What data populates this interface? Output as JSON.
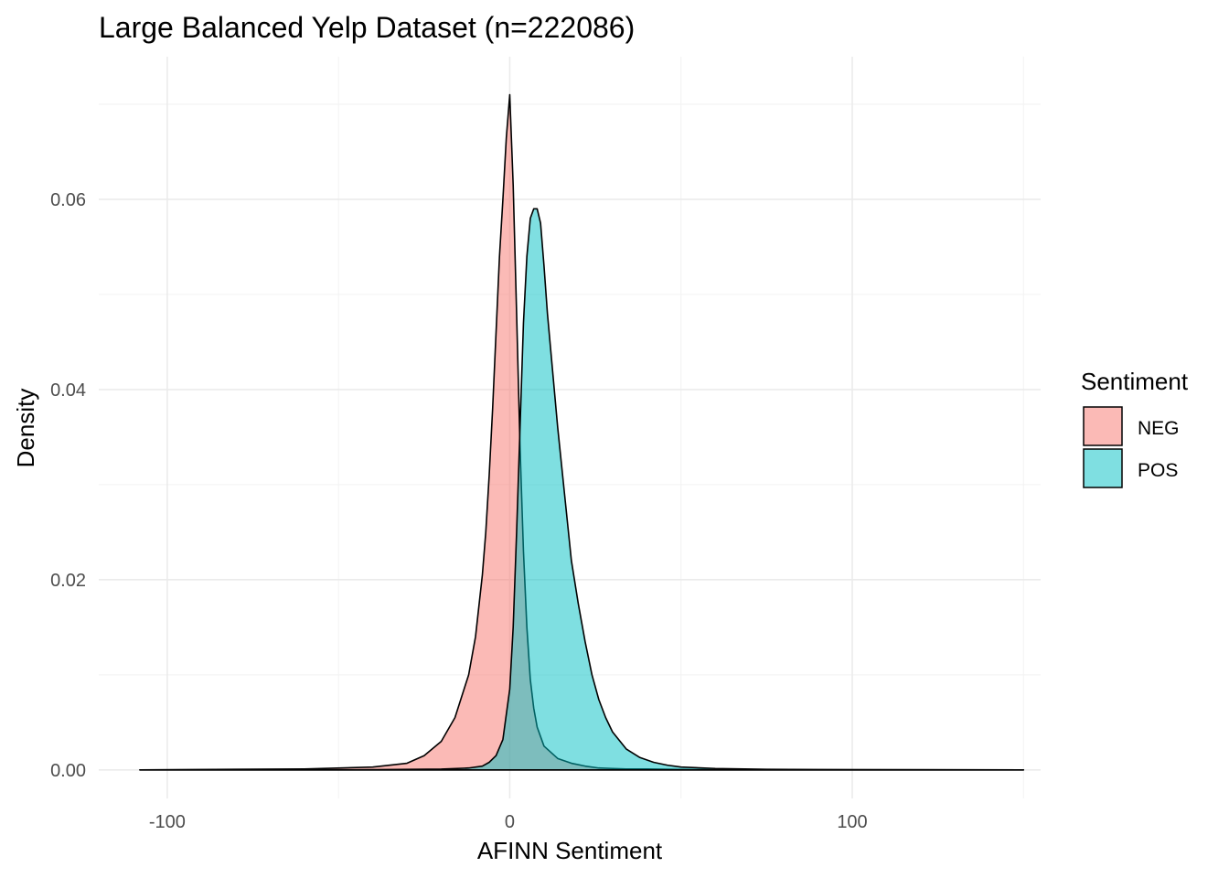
{
  "chart_data": {
    "type": "area",
    "title": "Large Balanced Yelp Dataset (n=222086)",
    "xlabel": "AFINN Sentiment",
    "ylabel": "Density",
    "xlim": [
      -120,
      155
    ],
    "ylim": [
      -0.003,
      0.075
    ],
    "grid": true,
    "x_ticks": [
      -100,
      0,
      100
    ],
    "x_tick_labels": [
      "-100",
      "0",
      "100"
    ],
    "y_ticks": [
      0,
      0.02,
      0.04,
      0.06
    ],
    "y_tick_labels": [
      "0.00",
      "0.02",
      "0.04",
      "0.06"
    ],
    "legend": {
      "title": "Sentiment",
      "position": "right"
    },
    "series": [
      {
        "name": "NEG",
        "color": "#F8766D",
        "x": [
          -108,
          -60,
          -40,
          -30,
          -25,
          -20,
          -16,
          -12,
          -10,
          -8,
          -7,
          -6,
          -5,
          -4,
          -3,
          -2,
          -1,
          0,
          1,
          2,
          3,
          4,
          5,
          6,
          7,
          8,
          10,
          14,
          18,
          22,
          26,
          30,
          34,
          40,
          50,
          60,
          80,
          110,
          150
        ],
        "values": [
          0,
          0.0001,
          0.0003,
          0.0007,
          0.0015,
          0.003,
          0.0055,
          0.01,
          0.014,
          0.0205,
          0.025,
          0.031,
          0.038,
          0.046,
          0.054,
          0.06,
          0.0665,
          0.071,
          0.0615,
          0.048,
          0.034,
          0.023,
          0.015,
          0.0095,
          0.0065,
          0.0045,
          0.0025,
          0.0012,
          0.0007,
          0.0004,
          0.0002,
          0.00015,
          0.0001,
          0.0001,
          5e-05,
          3e-05,
          2e-05,
          1e-05,
          0
        ]
      },
      {
        "name": "POS",
        "color": "#00BFC4",
        "x": [
          -108,
          -40,
          -20,
          -12,
          -8,
          -6,
          -4,
          -2,
          0,
          1,
          2,
          3,
          4,
          5,
          6,
          7,
          8,
          9,
          10,
          11,
          12,
          14,
          16,
          18,
          20,
          22,
          24,
          26,
          28,
          30,
          34,
          38,
          42,
          46,
          50,
          60,
          75,
          100,
          150
        ],
        "values": [
          0,
          2e-05,
          8e-05,
          0.0002,
          0.0004,
          0.0008,
          0.0015,
          0.0032,
          0.0085,
          0.015,
          0.025,
          0.036,
          0.047,
          0.054,
          0.058,
          0.059,
          0.059,
          0.0575,
          0.053,
          0.048,
          0.044,
          0.036,
          0.029,
          0.022,
          0.0175,
          0.0135,
          0.01,
          0.0074,
          0.0055,
          0.004,
          0.0022,
          0.0013,
          0.0008,
          0.0005,
          0.0003,
          0.00015,
          6e-05,
          2e-05,
          0
        ]
      }
    ]
  }
}
